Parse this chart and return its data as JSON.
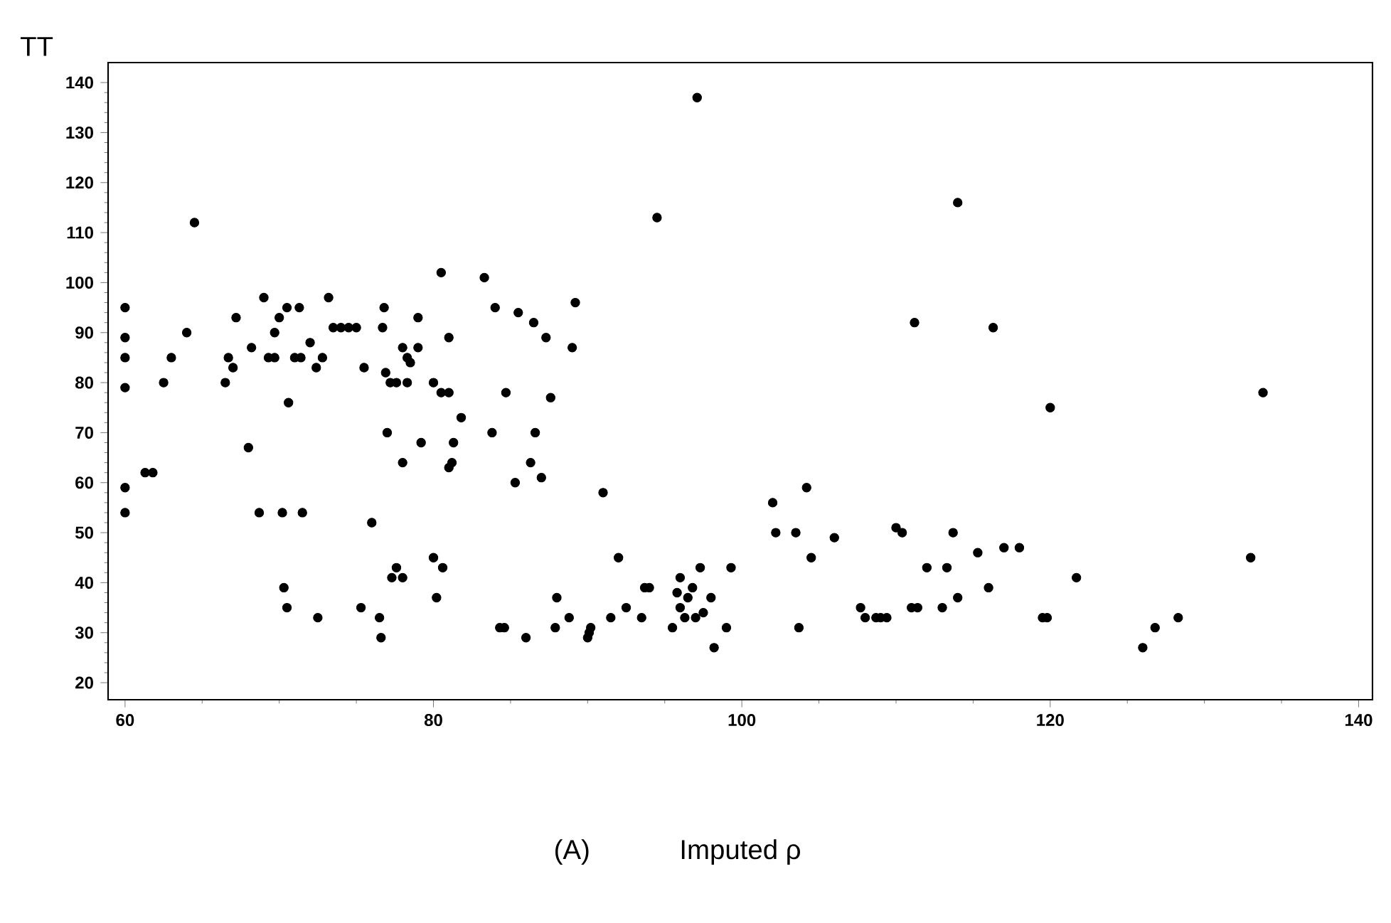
{
  "chart_data": {
    "type": "scatter",
    "ylabel": "TT",
    "xlabel": "Imputed ρ",
    "annotations": [
      "(A)"
    ],
    "xlim": [
      58.9,
      140.9
    ],
    "ylim": [
      16.6,
      144
    ],
    "xticks": [
      60,
      80,
      100,
      120,
      140
    ],
    "yticks": [
      20,
      30,
      40,
      50,
      60,
      70,
      80,
      90,
      100,
      110,
      120,
      130,
      140
    ],
    "marker": "circle",
    "series": [
      {
        "color": "#000000",
        "x": [
          60,
          60,
          60,
          60,
          60,
          60,
          61.3,
          61.8,
          62.5,
          63,
          64,
          64.5,
          66.5,
          66.7,
          67,
          67.2,
          68,
          68.2,
          68.7,
          69,
          69.3,
          69.7,
          69.7,
          70,
          70.2,
          70.3,
          70.5,
          70.5,
          70.6,
          71,
          71.3,
          71.4,
          71.5,
          72,
          72.4,
          72.5,
          72.8,
          73.2,
          73.5,
          74,
          74.5,
          75,
          75.3,
          75.5,
          76,
          76.5,
          76.6,
          76.7,
          76.8,
          76.9,
          77,
          77.3,
          77.2,
          77.6,
          77.6,
          78,
          78,
          78,
          78.3,
          78.3,
          78.5,
          79,
          79,
          79.2,
          80,
          80,
          80.2,
          80.5,
          80.5,
          80.6,
          81,
          81,
          81,
          81.2,
          81.3,
          81.8,
          83.3,
          83.8,
          84,
          84.3,
          84.6,
          84.7,
          85.3,
          85.5,
          86,
          86.3,
          86.5,
          86.6,
          87,
          87.3,
          87.6,
          87.9,
          88,
          88.8,
          89,
          89.2,
          90,
          90.1,
          90.2,
          91,
          91.5,
          92,
          92.5,
          93.5,
          93.7,
          94,
          94.5,
          95.5,
          95.8,
          96,
          96,
          96.3,
          96.5,
          96.8,
          97,
          97.1,
          97.3,
          97.5,
          98,
          98.2,
          99,
          99.3,
          102,
          102.2,
          103.5,
          103.7,
          104.2,
          104.5,
          106,
          107.7,
          108,
          108.7,
          109,
          109.4,
          110,
          110.4,
          111,
          111.2,
          111.4,
          112,
          113,
          113.3,
          113.7,
          114,
          114,
          115.3,
          116,
          116.3,
          117,
          118,
          119.5,
          119.8,
          120,
          121.7,
          126,
          126.8,
          128.3,
          133,
          133.8
        ],
        "values": [
          95,
          89,
          85,
          79,
          59,
          54,
          62,
          62,
          80,
          85,
          90,
          112,
          80,
          85,
          83,
          93,
          67,
          87,
          54,
          97,
          85,
          85,
          90,
          93,
          54,
          39,
          95,
          35,
          76,
          85,
          95,
          85,
          54,
          88,
          83,
          33,
          85,
          97,
          91,
          91,
          91,
          91,
          35,
          83,
          52,
          33,
          29,
          91,
          95,
          82,
          70,
          41,
          80,
          43,
          80,
          87,
          64,
          41,
          80,
          85,
          84,
          87,
          93,
          68,
          80,
          45,
          37,
          102,
          78,
          43,
          78,
          89,
          63,
          64,
          68,
          73,
          101,
          70,
          95,
          31,
          31,
          78,
          60,
          94,
          29,
          64,
          92,
          70,
          61,
          89,
          77,
          31,
          37,
          33,
          87,
          96,
          29,
          30,
          31,
          58,
          33,
          45,
          35,
          33,
          39,
          39,
          113,
          31,
          38,
          41,
          35,
          33,
          37,
          39,
          33,
          137,
          43,
          34,
          37,
          27,
          31,
          43,
          56,
          50,
          50,
          31,
          59,
          45,
          49,
          35,
          33,
          33,
          33,
          33,
          51,
          50,
          35,
          92,
          35,
          43,
          35,
          43,
          50,
          37,
          116,
          46,
          39,
          91,
          47,
          47,
          33,
          33,
          75,
          41,
          27,
          31,
          33,
          45,
          78
        ]
      }
    ]
  }
}
